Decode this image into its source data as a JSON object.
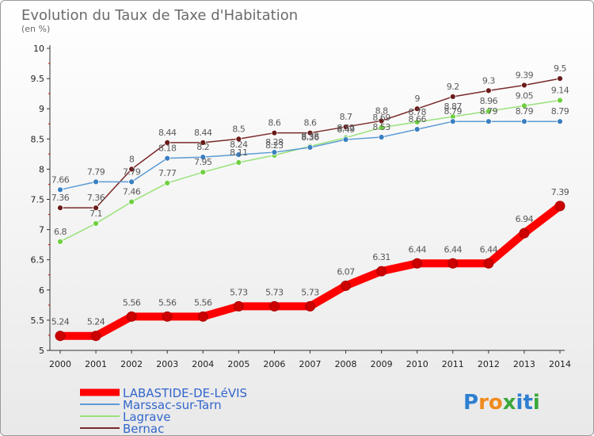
{
  "chart_data": {
    "type": "line",
    "title": "Evolution du Taux de Taxe d'Habitation",
    "subtitle": "(en %)",
    "x": [
      "2000",
      "2001",
      "2002",
      "2003",
      "2004",
      "2005",
      "2006",
      "2007",
      "2008",
      "2009",
      "2010",
      "2011",
      "2012",
      "2013",
      "2014"
    ],
    "ylim": [
      5,
      10
    ],
    "yticks": [
      "5",
      "5.5",
      "6",
      "6.5",
      "7",
      "7.5",
      "8",
      "8.5",
      "9",
      "9.5",
      "10"
    ],
    "grid": false,
    "legend_position": "bottom-left",
    "series": [
      {
        "name": "LABASTIDE-DE-LéVIS",
        "color": "#ff0000",
        "marker": "#cc0000",
        "values": [
          5.24,
          5.24,
          5.56,
          5.56,
          5.56,
          5.73,
          5.73,
          5.73,
          6.07,
          6.31,
          6.44,
          6.44,
          6.44,
          6.94,
          7.39
        ],
        "labels": [
          "5.24",
          "5.24",
          "5.56",
          "5.56",
          "5.56",
          "5.73",
          "5.73",
          "5.73",
          "6.07",
          "6.31",
          "6.44",
          "6.44",
          "6.44",
          "6.94",
          "7.39"
        ]
      },
      {
        "name": "Marssac-sur-Tarn",
        "color": "#5b9bd5",
        "marker": "#3a7fc1",
        "values": [
          7.66,
          7.79,
          7.79,
          8.18,
          8.2,
          8.24,
          8.28,
          8.36,
          8.49,
          8.53,
          8.66,
          8.79,
          8.79,
          8.79,
          8.79
        ],
        "labels": [
          "7.66",
          "7.79",
          "7.79",
          "8.18",
          "8.2",
          "8.24",
          "8.28",
          "8.36",
          "8.49",
          "8.53",
          "8.66",
          "8.79",
          "8.79",
          "8.79",
          "8.79"
        ]
      },
      {
        "name": "Lagrave",
        "color": "#99e27a",
        "marker": "#6fcf40",
        "values": [
          6.8,
          7.1,
          7.46,
          7.77,
          7.95,
          8.11,
          8.23,
          8.38,
          8.52,
          8.69,
          8.78,
          8.87,
          8.96,
          9.05,
          9.14
        ],
        "labels": [
          "6.8",
          "7.1",
          "7.46",
          "7.77",
          "7.95",
          "8.11",
          "8.23",
          "8.38",
          "8.52",
          "8.69",
          "8.78",
          "8.87",
          "8.96",
          "9.05",
          "9.14"
        ]
      },
      {
        "name": "Bernac",
        "color": "#7a2a2a",
        "marker": "#6a1a1a",
        "values": [
          7.36,
          7.36,
          8,
          8.44,
          8.44,
          8.5,
          8.6,
          8.6,
          8.7,
          8.8,
          9,
          9.2,
          9.3,
          9.39,
          9.5
        ],
        "labels": [
          "7.36",
          "7.36",
          "8",
          "8.44",
          "8.44",
          "8.5",
          "8.6",
          "8.6",
          "8.7",
          "8.8",
          "9",
          "9.2",
          "9.3",
          "9.39",
          "9.5"
        ]
      }
    ]
  },
  "brand": {
    "text": "Proxiti"
  }
}
